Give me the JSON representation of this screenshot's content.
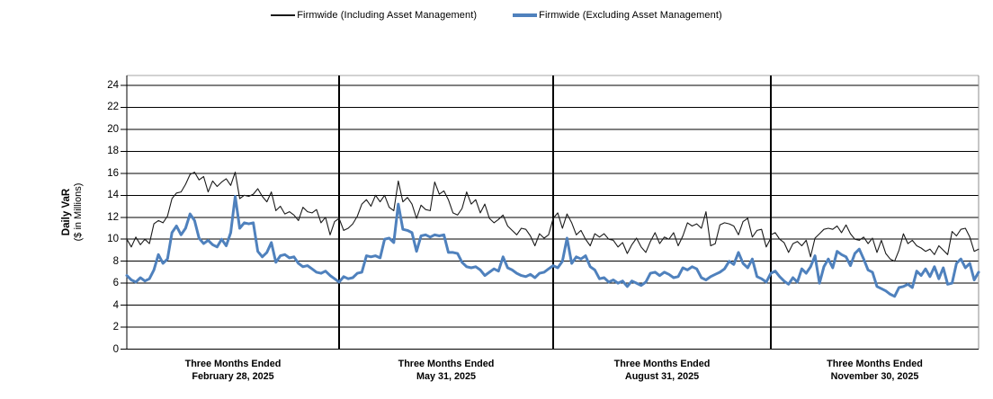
{
  "legend": {
    "items": [
      {
        "label": "Firmwide (Including Asset Management)",
        "color": "#1a1a1a",
        "thickness": 1.5
      },
      {
        "label": "Firmwide (Excluding Asset Management)",
        "color": "#4f81bd",
        "thickness": 3.5
      }
    ]
  },
  "y_axis": {
    "title": "Daily VaR",
    "subtitle": "($ in Millions)"
  },
  "x_axis": {
    "groups": [
      {
        "line1": "Three Months Ended",
        "line2": "February 28, 2025"
      },
      {
        "line1": "Three Months Ended",
        "line2": "May 31, 2025"
      },
      {
        "line1": "Three Months Ended",
        "line2": "August 31, 2025"
      },
      {
        "line1": "Three Months Ended",
        "line2": "November 30, 2025"
      }
    ]
  },
  "chart_data": {
    "type": "line",
    "title": "",
    "ylabel": "Daily VaR ($ in Millions)",
    "xlabel": "",
    "ylim": [
      0,
      24
    ],
    "yticks": [
      0,
      2,
      4,
      6,
      8,
      10,
      12,
      14,
      16,
      18,
      20,
      22,
      24
    ],
    "grid": "horizontal",
    "legend_position": "top-center",
    "x_groups": [
      "Three Months Ended February 28, 2025",
      "Three Months Ended May 31, 2025",
      "Three Months Ended August 31, 2025",
      "Three Months Ended November 30, 2025"
    ],
    "series": [
      {
        "name": "Firmwide (Including Asset Management)",
        "color": "#1a1a1a",
        "width": 1.1,
        "quarters": [
          [
            10.0,
            9.3,
            10.2,
            9.5,
            10.0,
            9.6,
            11.4,
            11.7,
            11.5,
            12.1,
            13.7,
            14.2,
            14.3,
            15.0,
            15.9,
            16.1,
            15.4,
            15.7,
            14.3,
            15.3,
            14.8,
            15.2,
            15.5,
            14.9,
            16.1,
            13.7,
            14.0,
            13.9,
            14.1,
            14.6,
            13.9,
            13.4,
            14.3,
            12.6,
            13.0,
            12.3,
            12.5,
            12.2,
            11.7,
            12.9,
            12.5,
            12.4,
            12.7,
            11.5,
            12.0,
            10.4,
            11.6,
            11.9
          ],
          [
            11.9,
            10.8,
            11.0,
            11.4,
            12.1,
            13.2,
            13.6,
            13.0,
            14.0,
            13.4,
            14.0,
            12.9,
            12.6,
            15.3,
            13.4,
            13.8,
            13.2,
            11.9,
            13.1,
            12.7,
            12.6,
            15.2,
            14.1,
            14.4,
            13.6,
            12.4,
            12.2,
            12.8,
            14.3,
            13.2,
            13.6,
            12.4,
            13.2,
            11.9,
            11.5,
            11.8,
            12.2,
            11.2,
            10.8,
            10.4,
            11.0,
            10.9,
            10.3,
            9.4,
            10.5,
            10.1,
            10.4,
            11.9
          ],
          [
            11.9,
            12.4,
            11.0,
            12.3,
            11.5,
            10.4,
            10.8,
            10.0,
            9.4,
            10.5,
            10.2,
            10.5,
            10.0,
            9.9,
            9.3,
            9.7,
            8.7,
            9.5,
            10.1,
            9.3,
            8.8,
            9.8,
            10.6,
            9.6,
            10.2,
            10.0,
            10.6,
            9.4,
            10.3,
            11.5,
            11.2,
            11.4,
            11.0,
            12.5,
            9.4,
            9.6,
            11.3,
            11.5,
            11.4,
            11.2,
            10.4,
            11.6,
            11.9,
            10.2,
            10.8,
            10.9,
            9.3,
            10.1
          ],
          [
            10.4,
            10.6,
            10.0,
            9.7,
            8.8,
            9.6,
            9.8,
            9.4,
            9.9,
            8.4,
            10.1,
            10.5,
            10.9,
            11.0,
            10.9,
            11.2,
            10.6,
            11.3,
            10.5,
            10.0,
            9.9,
            10.2,
            9.6,
            10.1,
            8.8,
            9.9,
            8.7,
            8.2,
            8.0,
            9.0,
            10.5,
            9.6,
            9.9,
            9.4,
            9.2,
            8.9,
            9.1,
            8.6,
            9.4,
            9.0,
            8.6,
            10.7,
            10.3,
            10.9,
            11.0,
            10.2,
            8.9,
            9.1
          ]
        ]
      },
      {
        "name": "Firmwide (Excluding Asset Management)",
        "color": "#4f81bd",
        "width": 3,
        "quarters": [
          [
            6.7,
            6.3,
            6.1,
            6.5,
            6.2,
            6.4,
            7.2,
            8.6,
            7.8,
            8.2,
            10.6,
            11.2,
            10.4,
            11.0,
            12.3,
            11.7,
            10.1,
            9.6,
            9.9,
            9.5,
            9.3,
            10.0,
            9.4,
            10.6,
            13.9,
            11.0,
            11.5,
            11.4,
            11.5,
            8.9,
            8.4,
            8.8,
            9.7,
            7.9,
            8.5,
            8.6,
            8.3,
            8.4,
            7.8,
            7.5,
            7.6,
            7.3,
            7.0,
            6.9,
            7.1,
            6.7,
            6.4,
            6.1
          ],
          [
            6.1,
            6.6,
            6.4,
            6.5,
            6.9,
            7.0,
            8.5,
            8.4,
            8.5,
            8.3,
            10.0,
            10.1,
            9.7,
            13.2,
            10.9,
            10.8,
            10.6,
            8.9,
            10.3,
            10.4,
            10.2,
            10.4,
            10.3,
            10.4,
            8.8,
            8.8,
            8.7,
            7.9,
            7.5,
            7.4,
            7.5,
            7.2,
            6.7,
            7.0,
            7.3,
            7.1,
            8.4,
            7.4,
            7.2,
            6.9,
            6.7,
            6.6,
            6.8,
            6.5,
            6.9,
            7.0,
            7.3,
            7.6
          ],
          [
            7.6,
            7.4,
            8.0,
            10.1,
            7.8,
            8.4,
            8.2,
            8.5,
            7.5,
            7.2,
            6.4,
            6.5,
            6.1,
            6.3,
            6.0,
            6.2,
            5.7,
            6.2,
            6.0,
            5.8,
            6.1,
            6.9,
            7.0,
            6.7,
            7.0,
            6.8,
            6.5,
            6.6,
            7.4,
            7.2,
            7.5,
            7.3,
            6.5,
            6.3,
            6.6,
            6.8,
            7.0,
            7.3,
            8.0,
            7.7,
            8.8,
            7.8,
            7.4,
            8.2,
            6.6,
            6.4,
            6.1,
            6.9
          ],
          [
            6.9,
            7.1,
            6.6,
            6.2,
            5.9,
            6.5,
            6.1,
            7.3,
            6.9,
            7.5,
            8.5,
            6.0,
            7.5,
            8.2,
            7.4,
            8.9,
            8.6,
            8.4,
            7.6,
            8.7,
            9.1,
            8.2,
            7.2,
            7.0,
            5.7,
            5.5,
            5.3,
            5.0,
            4.8,
            5.6,
            5.7,
            5.9,
            5.6,
            7.1,
            6.7,
            7.3,
            6.6,
            7.5,
            6.4,
            7.4,
            5.9,
            6.0,
            7.8,
            8.2,
            7.4,
            7.8,
            6.3,
            7.0
          ]
        ]
      }
    ]
  }
}
